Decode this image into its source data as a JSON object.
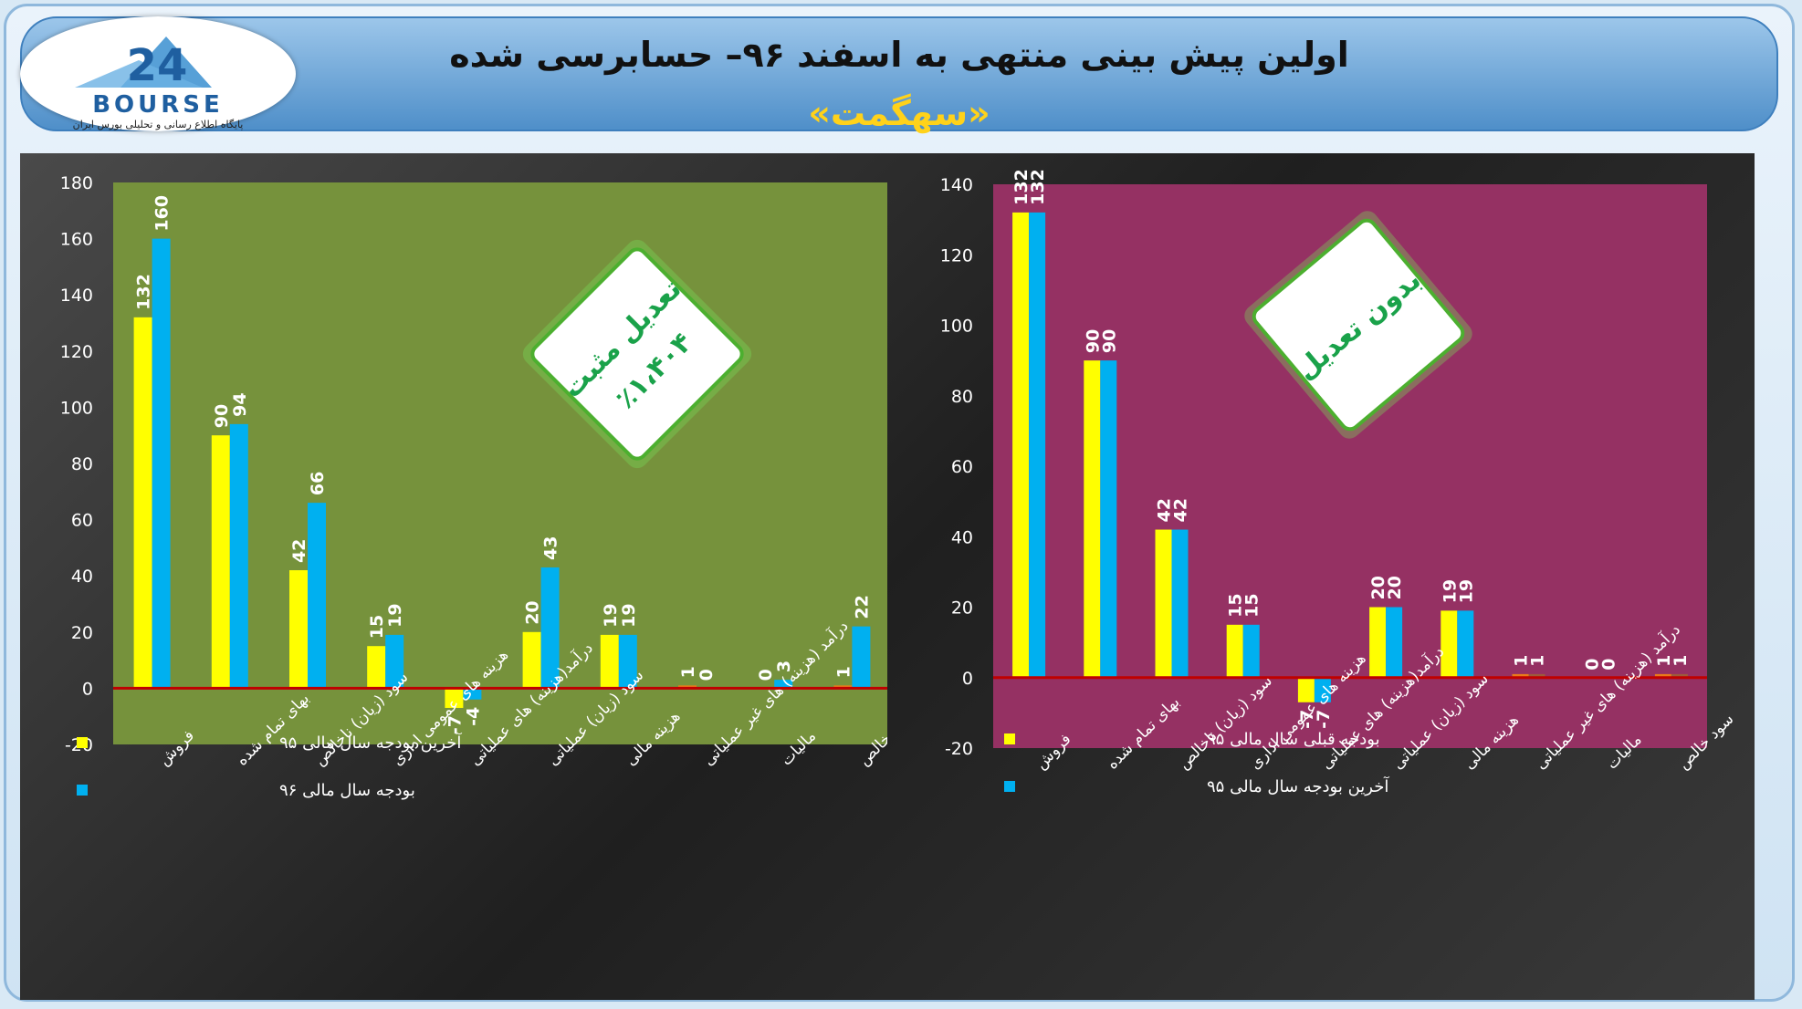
{
  "header": {
    "title": "اولین پیش بینی منتهی به اسفند ۹۶– حسابرسی شده",
    "subtitle": "«سهگمت»",
    "logo_text": "BOURSE",
    "logo_number": "24",
    "logo_subtitle": "پایگاه اطلاع رسانی و تحلیلی بورس ایران"
  },
  "colors": {
    "yellow": "#ffff00",
    "blue": "#00b0f0",
    "zero_line": "#c00000",
    "left_plot": "#76923c",
    "right_plot": "#953163"
  },
  "chart_data": [
    {
      "type": "bar",
      "title": "",
      "badge": [
        "تعدیل مثبت",
        "٪۱،۴۰۴"
      ],
      "categories": [
        "فروش",
        "بهای تمام شده",
        "سود (زیان) ناخالص",
        "هزینه های عمومی اداری",
        "درآمد(هزینه) های عملیاتی",
        "سود (زیان) عملیاتی",
        "هزینه مالی",
        "درآمد (هزینه) های غیر عملیاتی",
        "مالیات",
        "سود خالص"
      ],
      "series": [
        {
          "name": "آخرین بودجه سال مالی ۹۵",
          "color": "yellow",
          "values": [
            132,
            90,
            42,
            15,
            -7,
            20,
            19,
            1,
            0,
            1
          ]
        },
        {
          "name": "بودجه سال مالی ۹۶",
          "color": "blue",
          "values": [
            160,
            94,
            66,
            19,
            -4,
            43,
            19,
            0,
            3,
            22
          ]
        }
      ],
      "ylim": [
        -20,
        180
      ],
      "yticks": [
        -20,
        0,
        20,
        40,
        60,
        80,
        100,
        120,
        140,
        160,
        180
      ],
      "legend_position": "bottom-left"
    },
    {
      "type": "bar",
      "title": "",
      "badge": [
        "بدون تعدیل"
      ],
      "categories": [
        "فروش",
        "بهای تمام شده",
        "سود (زیان) ناخالص",
        "هزینه های عمومی اداری",
        "درآمد(هزینه) های عملیاتی",
        "سود (زیان) عملیاتی",
        "هزینه مالی",
        "درآمد (هزینه) های غیر عملیاتی",
        "مالیات",
        "سود خالص"
      ],
      "series": [
        {
          "name": "بودجه قبلی سال مالی ۹۵",
          "color": "yellow",
          "values": [
            132,
            90,
            42,
            15,
            -7,
            20,
            19,
            1,
            0,
            1
          ]
        },
        {
          "name": "آخرین بودجه سال مالی ۹۵",
          "color": "blue",
          "values": [
            132,
            90,
            42,
            15,
            -7,
            20,
            19,
            1,
            0,
            1
          ]
        }
      ],
      "ylim": [
        -20,
        140
      ],
      "yticks": [
        -20,
        0,
        20,
        40,
        60,
        80,
        100,
        120,
        140
      ],
      "legend_position": "bottom-left"
    }
  ]
}
